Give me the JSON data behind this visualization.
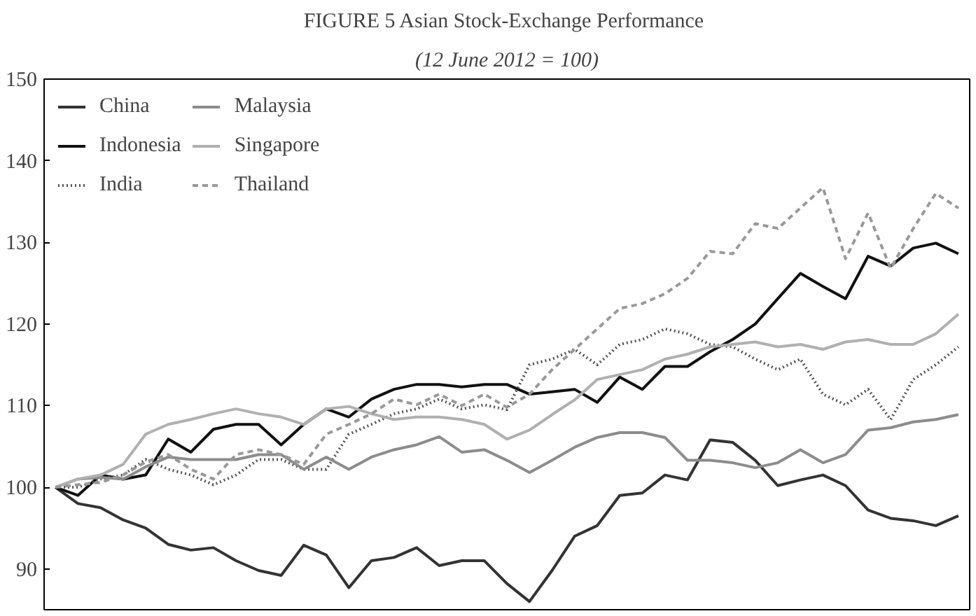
{
  "chart_data": {
    "type": "line",
    "title": "FIGURE 5  Asian Stock-Exchange Performance",
    "subtitle": "(12 June 2012 = 100)",
    "categories": [
      null,
      null,
      null,
      null,
      null,
      null,
      null,
      null,
      null,
      null,
      null,
      null,
      null,
      null,
      null,
      null,
      null,
      null,
      null,
      null,
      null,
      null,
      null,
      null,
      null,
      null,
      null,
      null,
      null,
      null,
      null,
      null,
      null,
      null,
      null,
      null,
      null,
      null,
      null,
      null,
      null
    ],
    "series": [
      {
        "name": "China",
        "color": "#333333",
        "line_style": "solid",
        "values": [
          100,
          98,
          97.5,
          96,
          95,
          93,
          92.3,
          92.6,
          91,
          89.8,
          89.2,
          92.9,
          91.7,
          87.7,
          91,
          91.4,
          92.6,
          90.4,
          91,
          91,
          88.2,
          86,
          89.8,
          94,
          95.3,
          99,
          99.3,
          101.5,
          100.9,
          105.8,
          105.5,
          103.3,
          100.2,
          100.9,
          101.5,
          100.2,
          97.2,
          96.2,
          95.9,
          95.3,
          96.5
        ]
      },
      {
        "name": "Indonesia",
        "color": "#111111",
        "line_style": "solid",
        "values": [
          100,
          99,
          101.5,
          101,
          101.5,
          105.9,
          104.3,
          107.1,
          107.7,
          107.7,
          105.2,
          107.7,
          109.6,
          108.6,
          110.8,
          112,
          112.6,
          112.6,
          112.3,
          112.6,
          112.6,
          111.4,
          111.7,
          112,
          110.4,
          113.5,
          112,
          114.8,
          114.8,
          116.6,
          118.1,
          120,
          123.1,
          126.2,
          124.6,
          123.1,
          128.3,
          127.1,
          129.3,
          129.9,
          128.6
        ]
      },
      {
        "name": "India",
        "color": "#555555",
        "line_style": "dotted",
        "values": [
          100,
          100,
          101,
          101.5,
          103.4,
          102.2,
          101.5,
          100.3,
          101.5,
          103.4,
          103.4,
          102.2,
          102.2,
          106.5,
          107.7,
          109,
          109.6,
          110.8,
          109.6,
          110.1,
          109.5,
          115,
          115.7,
          116.9,
          115,
          117.5,
          118.1,
          119.4,
          118.8,
          117.5,
          117.2,
          115.7,
          114.4,
          115.7,
          111.4,
          110.1,
          112,
          108.3,
          113.2,
          115,
          117.2
        ]
      },
      {
        "name": "Malaysia",
        "color": "#8c8c8c",
        "line_style": "solid",
        "values": [
          100,
          101,
          101.2,
          101,
          102.5,
          103.7,
          103.4,
          103.4,
          103.4,
          104,
          104,
          102.2,
          103.7,
          102.2,
          103.7,
          104.6,
          105.2,
          106.2,
          104.3,
          104.6,
          103.3,
          101.8,
          103.3,
          104.9,
          106.1,
          106.7,
          106.7,
          106.1,
          103.3,
          103.3,
          103,
          102.4,
          103,
          104.6,
          103,
          104,
          107,
          107.3,
          108,
          108.3,
          108.9
        ]
      },
      {
        "name": "Singapore",
        "color": "#b0b0b0",
        "line_style": "solid",
        "values": [
          100,
          101,
          101.5,
          102.8,
          106.5,
          107.7,
          108.3,
          109,
          109.6,
          109,
          108.6,
          107.7,
          109.6,
          109.9,
          109,
          108.3,
          108.6,
          108.6,
          108.3,
          107.7,
          105.9,
          107,
          108.9,
          110.7,
          113.2,
          113.8,
          114.4,
          115.7,
          116.3,
          117.2,
          117.5,
          117.8,
          117.2,
          117.5,
          116.9,
          117.8,
          118.1,
          117.5,
          117.5,
          118.8,
          121.2
        ]
      },
      {
        "name": "Thailand",
        "color": "#999999",
        "line_style": "dashed",
        "values": [
          100,
          100.3,
          100.6,
          101.5,
          103.1,
          104,
          102.2,
          101,
          104,
          104.6,
          104,
          102.8,
          106.5,
          107.7,
          109,
          110.8,
          110.1,
          111.4,
          110,
          111.4,
          109.8,
          111.4,
          114.4,
          116.9,
          119.4,
          121.9,
          122.5,
          123.7,
          125.6,
          128.9,
          128.6,
          132.3,
          131.7,
          134.2,
          136.7,
          128,
          133.6,
          126.8,
          131.7,
          136,
          134.2
        ]
      }
    ],
    "ylim": [
      85,
      150
    ],
    "yticks": [
      90,
      100,
      110,
      120,
      130,
      140,
      150
    ],
    "grid": false,
    "legend": "top left",
    "tick_labels": "y"
  }
}
